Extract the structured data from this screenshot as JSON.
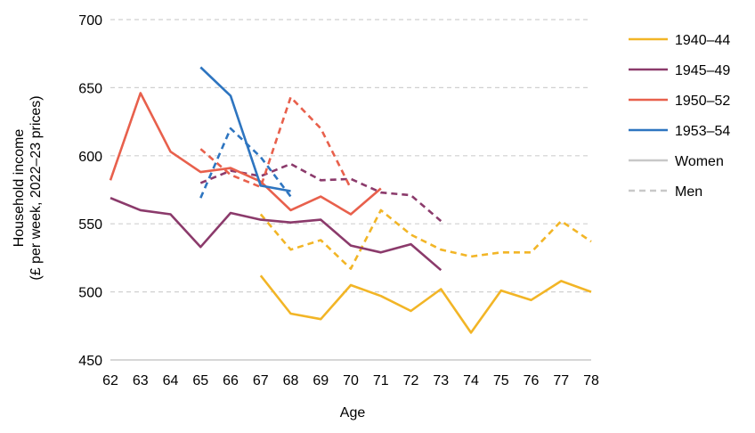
{
  "chart_data": {
    "type": "line",
    "title": "",
    "xlabel": "Age",
    "ylabel_line1": "Household income",
    "ylabel_line2": "(£ per week, 2022–23 prices)",
    "xlim": [
      62,
      78
    ],
    "ylim": [
      450,
      700
    ],
    "x_ticks": [
      62,
      63,
      64,
      65,
      66,
      67,
      68,
      69,
      70,
      71,
      72,
      73,
      74,
      75,
      76,
      77,
      78
    ],
    "y_ticks": [
      450,
      500,
      550,
      600,
      650,
      700
    ],
    "grid": "horizontal dashed",
    "legend_position": "right",
    "series": [
      {
        "name": "1940–44",
        "sex": "Women",
        "color": "#F2B526",
        "dash": false,
        "x": [
          67,
          68,
          69,
          70,
          71,
          72,
          73,
          74,
          75,
          76,
          77,
          78
        ],
        "y": [
          512,
          484,
          480,
          505,
          497,
          486,
          502,
          470,
          501,
          494,
          508,
          500
        ]
      },
      {
        "name": "1940–44",
        "sex": "Men",
        "color": "#F2B526",
        "dash": true,
        "x": [
          67,
          68,
          69,
          70,
          71,
          72,
          73,
          74,
          75,
          76,
          77,
          78
        ],
        "y": [
          557,
          531,
          538,
          517,
          560,
          542,
          531,
          526,
          529,
          529,
          552,
          537
        ]
      },
      {
        "name": "1945–49",
        "sex": "Women",
        "color": "#8B3A6B",
        "dash": false,
        "x": [
          62,
          63,
          64,
          65,
          66,
          67,
          68,
          69,
          70,
          71,
          72,
          73
        ],
        "y": [
          569,
          560,
          557,
          533,
          558,
          553,
          551,
          553,
          534,
          529,
          535,
          516
        ]
      },
      {
        "name": "1945–49",
        "sex": "Men",
        "color": "#8B3A6B",
        "dash": true,
        "x": [
          65,
          66,
          67,
          68,
          69,
          70,
          71,
          72,
          73
        ],
        "y": [
          580,
          589,
          585,
          594,
          582,
          583,
          573,
          571,
          552
        ]
      },
      {
        "name": "1950–52",
        "sex": "Women",
        "color": "#E8604C",
        "dash": false,
        "x": [
          62,
          63,
          64,
          65,
          66,
          67,
          68,
          69,
          70,
          71
        ],
        "y": [
          582,
          646,
          603,
          588,
          591,
          581,
          560,
          570,
          557,
          576
        ]
      },
      {
        "name": "1950–52",
        "sex": "Men",
        "color": "#E8604C",
        "dash": true,
        "x": [
          65,
          66,
          67,
          68,
          69,
          70
        ],
        "y": [
          605,
          586,
          577,
          643,
          620,
          576
        ]
      },
      {
        "name": "1953–54",
        "sex": "Women",
        "color": "#2E75C0",
        "dash": false,
        "x": [
          65,
          66,
          67,
          68
        ],
        "y": [
          665,
          644,
          578,
          574
        ]
      },
      {
        "name": "1953–54",
        "sex": "Men",
        "color": "#2E75C0",
        "dash": true,
        "x": [
          65,
          66,
          67,
          68
        ],
        "y": [
          569,
          620,
          599,
          570
        ]
      }
    ],
    "legend": [
      {
        "label": "1940–44",
        "color": "#F2B526",
        "dash": false
      },
      {
        "label": "1945–49",
        "color": "#8B3A6B",
        "dash": false
      },
      {
        "label": "1950–52",
        "color": "#E8604C",
        "dash": false
      },
      {
        "label": "1953–54",
        "color": "#2E75C0",
        "dash": false
      },
      {
        "label": "Women",
        "color": "#C8C8C8",
        "dash": false
      },
      {
        "label": "Men",
        "color": "#C8C8C8",
        "dash": true
      }
    ]
  }
}
